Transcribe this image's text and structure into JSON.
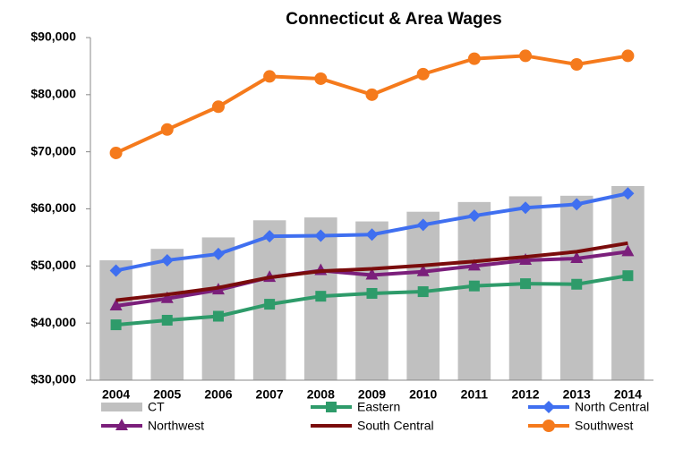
{
  "chart_data": {
    "type": "bar",
    "title": "Connecticut & Area Wages",
    "categories": [
      "2004",
      "2005",
      "2006",
      "2007",
      "2008",
      "2009",
      "2010",
      "2011",
      "2012",
      "2013",
      "2014"
    ],
    "ylim": [
      30000,
      90000
    ],
    "yticks": [
      {
        "value": 30000,
        "label": "$30,000"
      },
      {
        "value": 40000,
        "label": "$40,000"
      },
      {
        "value": 50000,
        "label": "$50,000"
      },
      {
        "value": 60000,
        "label": "$60,000"
      },
      {
        "value": 70000,
        "label": "$70,000"
      },
      {
        "value": 80000,
        "label": "$80,000"
      },
      {
        "value": 90000,
        "label": "$90,000"
      }
    ],
    "grid": false,
    "legend": "bottom",
    "series": [
      {
        "name": "CT",
        "type": "bar",
        "color": "#c0c0c0",
        "values": [
          51000,
          53000,
          55000,
          58000,
          58500,
          57800,
          59500,
          61200,
          62200,
          62300,
          64000
        ]
      },
      {
        "name": "Eastern",
        "type": "line",
        "marker": "square",
        "color": "#2e9b6a",
        "values": [
          39700,
          40500,
          41200,
          43300,
          44700,
          45200,
          45500,
          46500,
          46900,
          46800,
          48300
        ]
      },
      {
        "name": "North Central",
        "type": "line",
        "marker": "diamond",
        "color": "#3f6ff0",
        "values": [
          49200,
          51000,
          52100,
          55200,
          55300,
          55500,
          57200,
          58800,
          60200,
          60800,
          62700
        ]
      },
      {
        "name": "Northwest",
        "type": "line",
        "marker": "triangle",
        "color": "#7b1f7b",
        "values": [
          43000,
          44300,
          45800,
          48000,
          49200,
          48400,
          49000,
          50000,
          51000,
          51300,
          52500
        ]
      },
      {
        "name": "South Central",
        "type": "line",
        "marker": "none",
        "color": "#7a0c0c",
        "values": [
          44000,
          45000,
          46200,
          48000,
          49100,
          49500,
          50100,
          50800,
          51600,
          52500,
          54000
        ]
      },
      {
        "name": "Southwest",
        "type": "line",
        "marker": "circle",
        "color": "#f57a1c",
        "values": [
          69800,
          73900,
          77900,
          83200,
          82800,
          80000,
          83600,
          86300,
          86800,
          85300,
          86800
        ]
      }
    ]
  }
}
